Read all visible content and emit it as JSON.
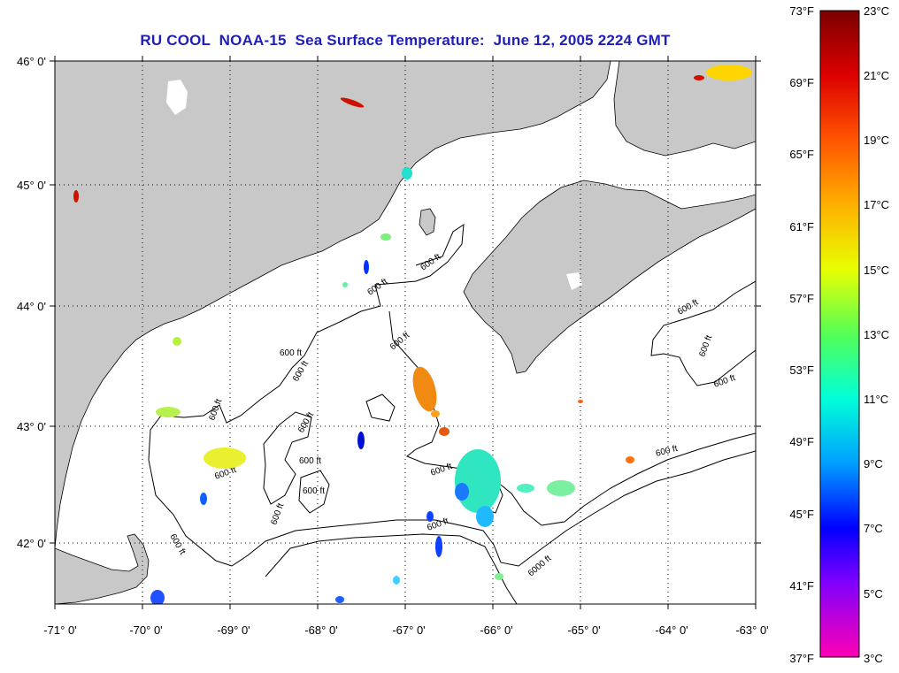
{
  "title": "RU COOL  NOAA-15  Sea Surface Temperature:  June 12, 2005 2224 GMT",
  "map": {
    "lat_labels": [
      "46° 0'",
      "45° 0'",
      "44° 0'",
      "43° 0'",
      "42° 0'"
    ],
    "lon_labels": [
      "-71° 0'",
      "-70° 0'",
      "-69° 0'",
      "-68° 0'",
      "-67° 0'",
      "-66° 0'",
      "-65° 0'",
      "-64° 0'",
      "-63° 0'"
    ],
    "contour_label": "600 ft",
    "contour_label_deep": "6000 ft",
    "land_color": "#c8c8c8",
    "water_color": "#ffffff"
  },
  "colorbar": {
    "fahrenheit": [
      "73°F",
      "69°F",
      "65°F",
      "61°F",
      "57°F",
      "53°F",
      "49°F",
      "45°F",
      "41°F",
      "37°F"
    ],
    "celsius": [
      "23°C",
      "21°C",
      "19°C",
      "17°C",
      "15°C",
      "13°C",
      "11°C",
      "9°C",
      "7°C",
      "5°C",
      "3°C"
    ],
    "min_c": 3,
    "max_c": 23
  }
}
